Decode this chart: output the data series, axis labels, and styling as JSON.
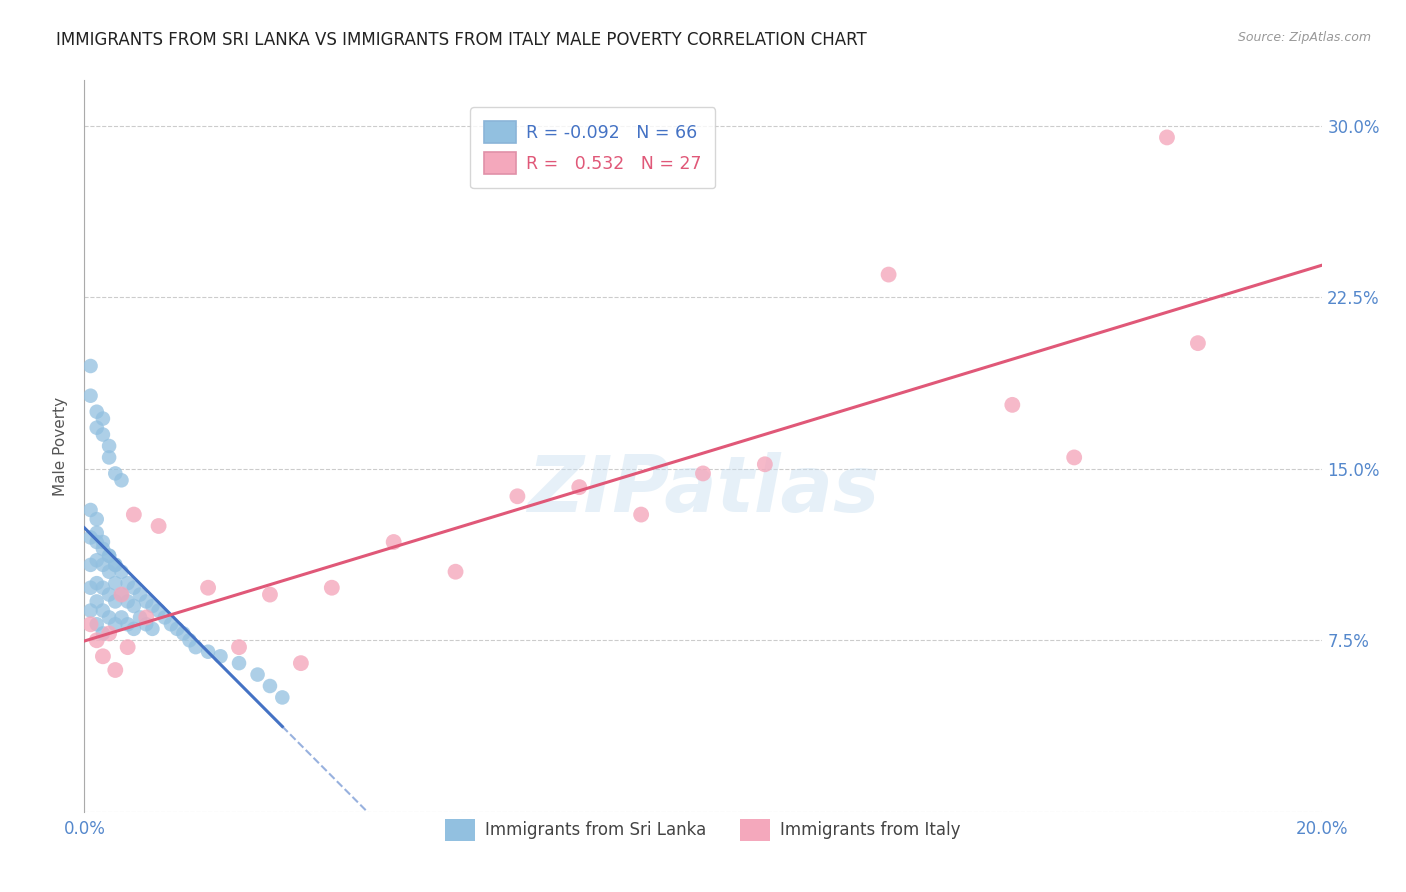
{
  "title": "IMMIGRANTS FROM SRI LANKA VS IMMIGRANTS FROM ITALY MALE POVERTY CORRELATION CHART",
  "source": "Source: ZipAtlas.com",
  "ylabel": "Male Poverty",
  "xlim": [
    0.0,
    0.2
  ],
  "ylim": [
    0.0,
    0.32
  ],
  "xticks": [
    0.0,
    0.05,
    0.1,
    0.15,
    0.2
  ],
  "xtick_labels": [
    "0.0%",
    "",
    "",
    "",
    "20.0%"
  ],
  "ytick_labels_right": [
    "",
    "7.5%",
    "15.0%",
    "22.5%",
    "30.0%"
  ],
  "yticks_right": [
    0.0,
    0.075,
    0.15,
    0.225,
    0.3
  ],
  "grid_color": "#cccccc",
  "watermark_text": "ZIPatlas",
  "color_sri_lanka": "#92c0e0",
  "color_italy": "#f4a8bc",
  "trend_color_sri_lanka": "#4472c4",
  "trend_color_italy": "#e05878",
  "background_color": "#ffffff",
  "sri_lanka_x": [
    0.001,
    0.001,
    0.001,
    0.001,
    0.002,
    0.002,
    0.002,
    0.002,
    0.002,
    0.003,
    0.003,
    0.003,
    0.003,
    0.003,
    0.004,
    0.004,
    0.004,
    0.004,
    0.005,
    0.005,
    0.005,
    0.005,
    0.006,
    0.006,
    0.006,
    0.007,
    0.007,
    0.007,
    0.008,
    0.008,
    0.008,
    0.009,
    0.009,
    0.01,
    0.01,
    0.011,
    0.011,
    0.012,
    0.013,
    0.014,
    0.015,
    0.016,
    0.017,
    0.018,
    0.02,
    0.022,
    0.025,
    0.028,
    0.03,
    0.032,
    0.001,
    0.001,
    0.002,
    0.002,
    0.003,
    0.003,
    0.004,
    0.004,
    0.005,
    0.006,
    0.001,
    0.002,
    0.002,
    0.003,
    0.004,
    0.005
  ],
  "sri_lanka_y": [
    0.12,
    0.108,
    0.098,
    0.088,
    0.118,
    0.11,
    0.1,
    0.092,
    0.082,
    0.115,
    0.108,
    0.098,
    0.088,
    0.078,
    0.112,
    0.105,
    0.095,
    0.085,
    0.108,
    0.1,
    0.092,
    0.082,
    0.105,
    0.095,
    0.085,
    0.1,
    0.092,
    0.082,
    0.098,
    0.09,
    0.08,
    0.095,
    0.085,
    0.092,
    0.082,
    0.09,
    0.08,
    0.088,
    0.085,
    0.082,
    0.08,
    0.078,
    0.075,
    0.072,
    0.07,
    0.068,
    0.065,
    0.06,
    0.055,
    0.05,
    0.195,
    0.182,
    0.175,
    0.168,
    0.172,
    0.165,
    0.16,
    0.155,
    0.148,
    0.145,
    0.132,
    0.128,
    0.122,
    0.118,
    0.112,
    0.108
  ],
  "italy_x": [
    0.001,
    0.002,
    0.003,
    0.004,
    0.005,
    0.006,
    0.007,
    0.008,
    0.01,
    0.012,
    0.02,
    0.025,
    0.03,
    0.035,
    0.04,
    0.05,
    0.06,
    0.07,
    0.08,
    0.09,
    0.1,
    0.11,
    0.13,
    0.15,
    0.16,
    0.175,
    0.18
  ],
  "italy_y": [
    0.082,
    0.075,
    0.068,
    0.078,
    0.062,
    0.095,
    0.072,
    0.13,
    0.085,
    0.125,
    0.098,
    0.072,
    0.095,
    0.065,
    0.098,
    0.118,
    0.105,
    0.138,
    0.142,
    0.13,
    0.148,
    0.152,
    0.235,
    0.178,
    0.155,
    0.295,
    0.205
  ],
  "legend_text1": "R = -0.092   N = 66",
  "legend_text2": "R =   0.532   N = 27"
}
